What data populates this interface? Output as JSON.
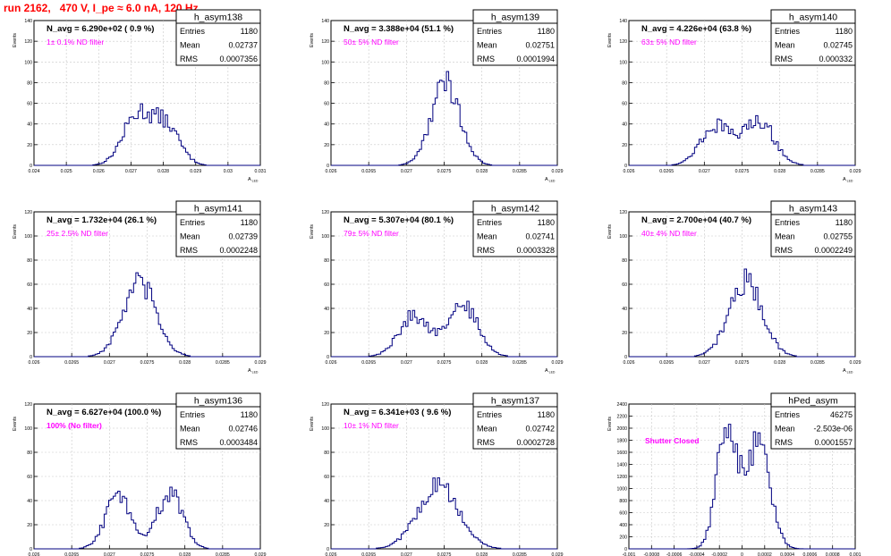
{
  "page": {
    "run_title": "run 2162,   470 V, I_pe ≈ 6.0 nA, 120 Hz"
  },
  "stat_labels": {
    "entries": "Entries",
    "mean": "Mean",
    "rms": "RMS"
  },
  "colors": {
    "title": "#ff0000",
    "annotation": "#ff00ff",
    "histogram": "#000080",
    "grid": "#c8c8c8",
    "axis": "#000000"
  },
  "chart_data": [
    {
      "type": "histogram",
      "name": "h_asym138",
      "header": "N_avg = 6.290e+02 ( 0.9 %)",
      "annotation": "1± 0.1% ND filter",
      "entries": "1180",
      "mean": "0.02737",
      "rms": "0.0007356",
      "ylabel": "Events",
      "xlabel": "A",
      "xlim": [
        0.024,
        0.031
      ],
      "ylim": [
        0,
        140
      ],
      "grid": true,
      "xticks": [
        "0.024",
        "0.025",
        "0.026",
        "0.027",
        "0.028",
        "0.029",
        "0.03",
        "0.031"
      ],
      "yticks": [
        "0",
        "20",
        "40",
        "60",
        "80",
        "100",
        "120",
        "140"
      ],
      "shape": {
        "peaks": [
          [
            0.0272,
            48,
            0.00045
          ],
          [
            0.0281,
            36,
            0.00042
          ]
        ]
      }
    },
    {
      "type": "histogram",
      "name": "h_asym139",
      "header": "N_avg = 3.388e+04 (51.1 %)",
      "annotation": "50± 5% ND filter",
      "entries": "1180",
      "mean": "0.02751",
      "rms": "0.0001994",
      "ylabel": "Events",
      "xlabel": "A",
      "xlim": [
        0.026,
        0.029
      ],
      "ylim": [
        0,
        140
      ],
      "grid": true,
      "xticks": [
        "0.026",
        "0.0265",
        "0.027",
        "0.0275",
        "0.028",
        "0.0285",
        "0.029"
      ],
      "yticks": [
        "0",
        "20",
        "40",
        "60",
        "80",
        "100",
        "120",
        "140"
      ],
      "shape": {
        "peaks": [
          [
            0.02752,
            80,
            0.00019
          ]
        ]
      }
    },
    {
      "type": "histogram",
      "name": "h_asym140",
      "header": "N_avg = 4.226e+04 (63.8 %)",
      "annotation": "63± 5% ND filter",
      "entries": "1180",
      "mean": "0.02745",
      "rms": "0.000332",
      "ylabel": "Events",
      "xlabel": "A",
      "xlim": [
        0.026,
        0.029
      ],
      "ylim": [
        0,
        140
      ],
      "grid": true,
      "xticks": [
        "0.026",
        "0.0265",
        "0.027",
        "0.0275",
        "0.028",
        "0.0285",
        "0.029"
      ],
      "yticks": [
        "0",
        "20",
        "40",
        "60",
        "80",
        "100",
        "120",
        "140"
      ],
      "shape": {
        "peaks": [
          [
            0.02715,
            38,
            0.0002
          ],
          [
            0.02772,
            44,
            0.0002
          ]
        ]
      }
    },
    {
      "type": "histogram",
      "name": "h_asym141",
      "header": "N_avg = 1.732e+04 (26.1 %)",
      "annotation": "25± 2.5% ND filter",
      "entries": "1180",
      "mean": "0.02739",
      "rms": "0.0002248",
      "ylabel": "Events",
      "xlabel": "A",
      "xlim": [
        0.026,
        0.029
      ],
      "ylim": [
        0,
        120
      ],
      "grid": true,
      "xticks": [
        "0.026",
        "0.0265",
        "0.027",
        "0.0275",
        "0.028",
        "0.0285",
        "0.029"
      ],
      "yticks": [
        "0",
        "20",
        "40",
        "60",
        "80",
        "100",
        "120"
      ],
      "shape": {
        "peaks": [
          [
            0.0274,
            60,
            0.00022
          ]
        ]
      }
    },
    {
      "type": "histogram",
      "name": "h_asym142",
      "header": "N_avg = 5.307e+04 (80.1 %)",
      "annotation": "79± 5% ND filter",
      "entries": "1180",
      "mean": "0.02741",
      "rms": "0.0003328",
      "ylabel": "Events",
      "xlabel": "A",
      "xlim": [
        0.026,
        0.029
      ],
      "ylim": [
        0,
        120
      ],
      "grid": true,
      "xticks": [
        "0.026",
        "0.0265",
        "0.027",
        "0.0275",
        "0.028",
        "0.0285",
        "0.029"
      ],
      "yticks": [
        "0",
        "20",
        "40",
        "60",
        "80",
        "100",
        "120"
      ],
      "shape": {
        "peaks": [
          [
            0.0271,
            34,
            0.0002
          ],
          [
            0.02775,
            42,
            0.0002
          ]
        ]
      }
    },
    {
      "type": "histogram",
      "name": "h_asym143",
      "header": "N_avg = 2.700e+04 (40.7 %)",
      "annotation": "40± 4% ND filter",
      "entries": "1180",
      "mean": "0.02755",
      "rms": "0.0002249",
      "ylabel": "Events",
      "xlabel": "A",
      "xlim": [
        0.026,
        0.029
      ],
      "ylim": [
        0,
        120
      ],
      "grid": true,
      "xticks": [
        "0.026",
        "0.0265",
        "0.027",
        "0.0275",
        "0.028",
        "0.0285",
        "0.029"
      ],
      "yticks": [
        "0",
        "20",
        "40",
        "60",
        "80",
        "100",
        "120"
      ],
      "shape": {
        "peaks": [
          [
            0.02755,
            62,
            0.00022
          ]
        ]
      }
    },
    {
      "type": "histogram",
      "name": "h_asym136",
      "header": "N_avg = 6.627e+04 (100.0 %)",
      "annotation": "100% (No filter)",
      "entries": "1180",
      "mean": "0.02746",
      "rms": "0.0003484",
      "ylabel": "Events",
      "xlabel": "A",
      "xlim": [
        0.026,
        0.029
      ],
      "ylim": [
        0,
        120
      ],
      "grid": true,
      "xticks": [
        "0.026",
        "0.0265",
        "0.027",
        "0.0275",
        "0.028",
        "0.0285",
        "0.029"
      ],
      "yticks": [
        "0",
        "20",
        "40",
        "60",
        "80",
        "100",
        "120"
      ],
      "shape": {
        "peaks": [
          [
            0.02712,
            44,
            0.00017
          ],
          [
            0.0278,
            46,
            0.00017
          ]
        ]
      }
    },
    {
      "type": "histogram",
      "name": "h_asym137",
      "header": "N_avg = 6.341e+03 ( 9.6 %)",
      "annotation": "10± 1% ND filter",
      "entries": "1180",
      "mean": "0.02742",
      "rms": "0.0002728",
      "ylabel": "Events",
      "xlabel": "A",
      "xlim": [
        0.026,
        0.029
      ],
      "ylim": [
        0,
        120
      ],
      "grid": true,
      "xticks": [
        "0.026",
        "0.0265",
        "0.027",
        "0.0275",
        "0.028",
        "0.0285",
        "0.029"
      ],
      "yticks": [
        "0",
        "20",
        "40",
        "60",
        "80",
        "100",
        "120"
      ],
      "shape": {
        "peaks": [
          [
            0.02742,
            52,
            0.00027
          ]
        ]
      }
    },
    {
      "type": "histogram",
      "name": "hPed_asym",
      "header": "",
      "annotation": "Shutter Closed",
      "entries": "46275",
      "mean": "-2.503e-06",
      "rms": "0.0001557",
      "ylabel": "Events",
      "xlabel": "",
      "xlim": [
        -0.001,
        0.001
      ],
      "ylim": [
        0,
        2400
      ],
      "grid": true,
      "xticks": [
        "-0.001",
        "-0.0008",
        "-0.0006",
        "-0.0004",
        "-0.0002",
        "0",
        "0.0002",
        "0.0004",
        "0.0006",
        "0.0008",
        "0.001"
      ],
      "yticks": [
        "0",
        "200",
        "400",
        "600",
        "800",
        "1000",
        "1200",
        "1400",
        "1600",
        "1800",
        "2000",
        "2200",
        "2400"
      ],
      "shape": {
        "peaks": [
          [
            -0.00013,
            2050,
            9e-05
          ],
          [
            0.00015,
            1800,
            0.0001
          ]
        ]
      }
    }
  ]
}
